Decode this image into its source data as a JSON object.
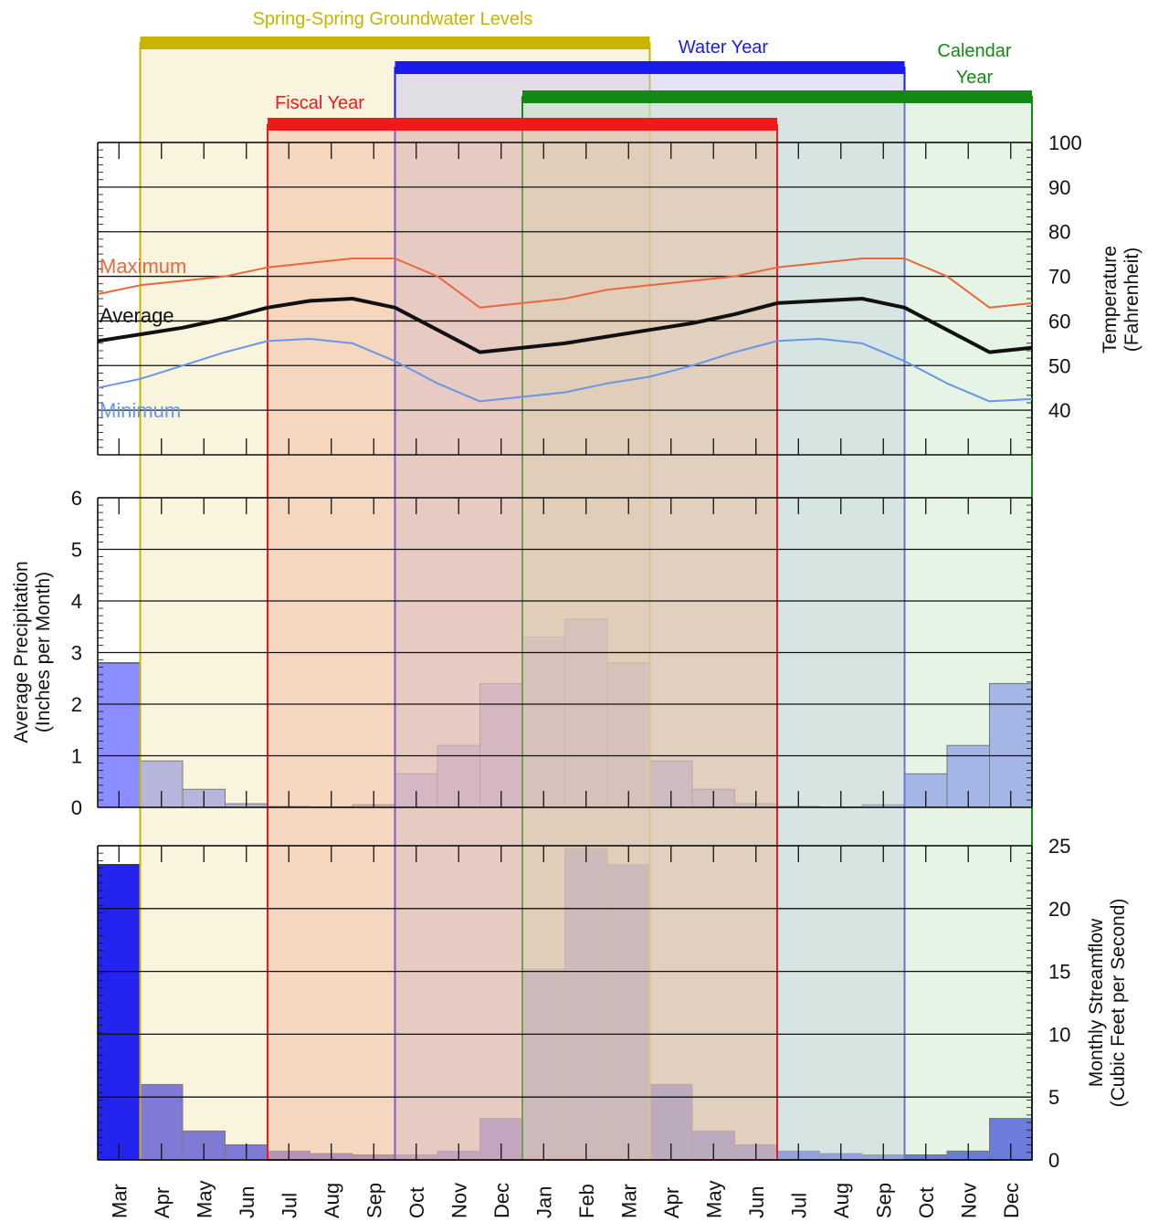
{
  "chart_data": {
    "type": "bar",
    "months": [
      "Mar",
      "Apr",
      "May",
      "Jun",
      "Jul",
      "Aug",
      "Sep",
      "Oct",
      "Nov",
      "Dec",
      "Jan",
      "Feb",
      "Mar",
      "Apr",
      "May",
      "Jun",
      "Jul",
      "Aug",
      "Sep",
      "Oct",
      "Nov",
      "Dec"
    ],
    "periods": [
      {
        "name": "Spring-Spring Groundwater Levels",
        "start": 1,
        "end": 12,
        "color": "#c8b400",
        "fill": "#efe6b4"
      },
      {
        "name": "Water Year",
        "start": 7,
        "end": 18,
        "color": "#1a1aee",
        "fill": "#c4c4ee"
      },
      {
        "name": "Calendar Year",
        "start": 10,
        "end": 21,
        "color": "#148a14",
        "fill": "#c6e6c6"
      },
      {
        "name": "Fiscal Year",
        "start": 4,
        "end": 15,
        "color": "#ee1a1a",
        "fill": "#f0b498"
      }
    ],
    "temperature": {
      "ylabel": "Temperature (Fahrenheit)",
      "ylim": [
        30,
        100
      ],
      "ticks": [
        40,
        50,
        60,
        70,
        80,
        90,
        100
      ],
      "series": [
        {
          "name": "Maximum",
          "color": "#e8683c",
          "width": 2,
          "values": [
            66,
            68,
            69,
            70,
            72,
            73,
            74,
            74,
            70,
            63,
            64,
            65,
            67,
            68,
            69,
            70,
            72,
            73,
            74,
            74,
            70,
            63,
            64
          ]
        },
        {
          "name": "Average",
          "color": "#111111",
          "width": 4,
          "values": [
            55.5,
            57,
            58.5,
            60.5,
            63,
            64.5,
            65,
            63,
            58,
            53,
            54,
            55,
            56.5,
            58,
            59.5,
            61.5,
            64,
            64.5,
            65,
            63,
            58,
            53,
            54
          ]
        },
        {
          "name": "Minimum",
          "color": "#6a96e6",
          "width": 2,
          "values": [
            45,
            47,
            50,
            53,
            55.5,
            56,
            55,
            51,
            46,
            42,
            43,
            44,
            46,
            47.5,
            50,
            53,
            55.5,
            56,
            55,
            51,
            46,
            42,
            42.5
          ]
        }
      ]
    },
    "precipitation": {
      "ylabel": "Average Precipitation (Inches per Month)",
      "ylim": [
        0,
        6
      ],
      "ticks": [
        0,
        1,
        2,
        3,
        4,
        5,
        6
      ],
      "values": [
        2.8,
        0.9,
        0.35,
        0.07,
        0.02,
        0.01,
        0.05,
        0.65,
        1.2,
        2.4,
        3.3,
        3.65,
        2.8,
        0.9,
        0.35,
        0.07,
        0.02,
        0.01,
        0.05,
        0.65,
        1.2,
        2.4
      ],
      "color": "#8b8cff"
    },
    "streamflow": {
      "ylabel": "Monthly Streamflow (Cubic Feet per Second)",
      "ylim": [
        0,
        25
      ],
      "ticks": [
        0,
        5,
        10,
        15,
        20,
        25
      ],
      "values": [
        23.5,
        6,
        2.3,
        1.2,
        0.7,
        0.5,
        0.4,
        0.4,
        0.7,
        3.3,
        15.2,
        24.8,
        23.5,
        6,
        2.3,
        1.2,
        0.7,
        0.5,
        0.4,
        0.4,
        0.7,
        3.3
      ],
      "color": "#2424ee"
    }
  }
}
